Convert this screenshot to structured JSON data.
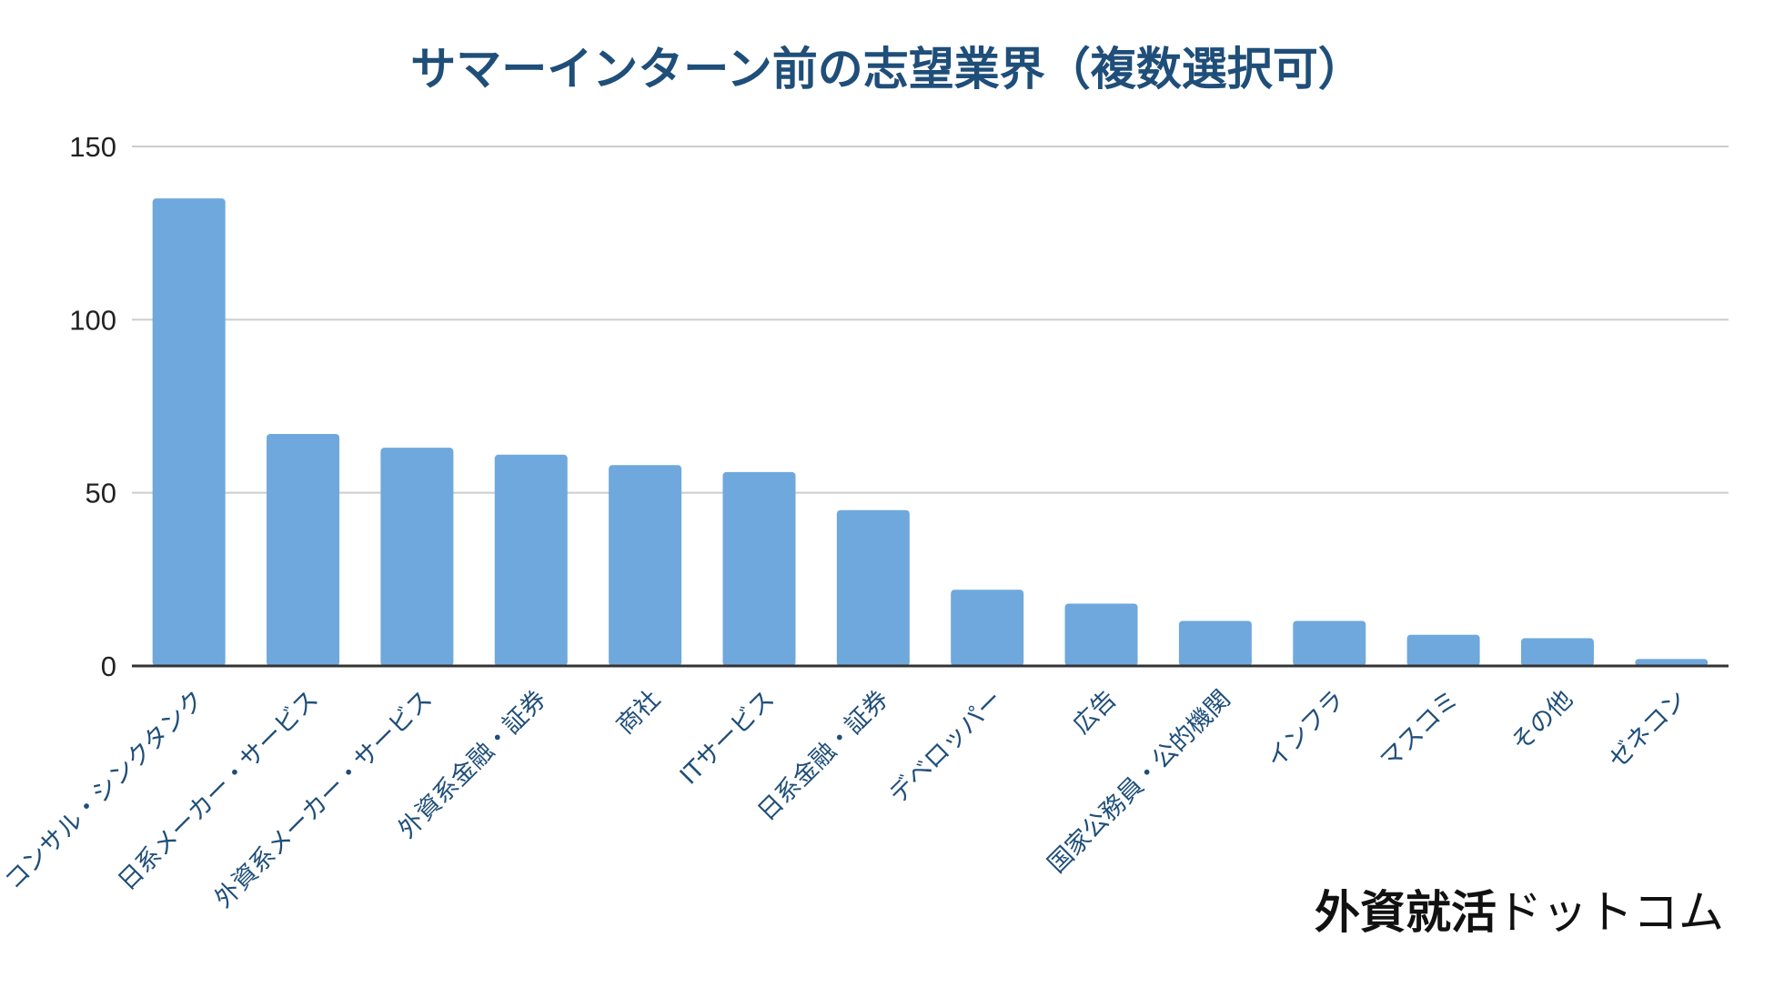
{
  "chart_data": {
    "type": "bar",
    "title": "サマーインターン前の志望業界（複数選択可）",
    "xlabel": "",
    "ylabel": "",
    "ylim": [
      0,
      150
    ],
    "yticks": [
      0,
      50,
      100,
      150
    ],
    "grid": true,
    "legend": "none",
    "colors": {
      "bar": "#6fa8dc",
      "title": "#1f4e79",
      "grid": "#cccccc",
      "axis": "#333333"
    },
    "categories": [
      "コンサル・シンクタンク",
      "日系メーカー・サービス",
      "外資系メーカー・サービス",
      "外資系金融・証券",
      "商社",
      "ITサービス",
      "日系金融・証券",
      "デベロッパー",
      "広告",
      "国家公務員・公的機関",
      "インフラ",
      "マスコミ",
      "その他",
      "ゼネコン"
    ],
    "values": [
      135,
      67,
      63,
      61,
      58,
      56,
      45,
      22,
      18,
      13,
      13,
      9,
      8,
      2
    ]
  },
  "watermark": {
    "kanji": "外資就活",
    "kana": "ドットコム"
  }
}
